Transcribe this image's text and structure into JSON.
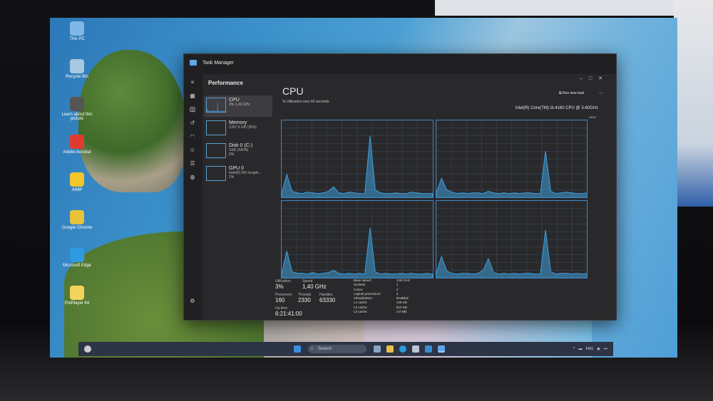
{
  "desktop": {
    "icons": [
      {
        "label": "This PC",
        "color": "#7fb7e6"
      },
      {
        "label": "Recycle Bin",
        "color": "#a8c8e0"
      },
      {
        "label": "Learn about this picture",
        "color": "#555"
      },
      {
        "label": "Adobe Acrobat",
        "color": "#e03a2f"
      },
      {
        "label": "AIMP",
        "color": "#f2c52a"
      },
      {
        "label": "Google Chrome",
        "color": "#e8c33a"
      },
      {
        "label": "Microsoft Edge",
        "color": "#2e9be0"
      },
      {
        "label": "PotPlayer 64",
        "color": "#f3d35b"
      }
    ]
  },
  "taskbar": {
    "search_placeholder": "Search",
    "tray_lang": "ENG"
  },
  "task_manager": {
    "title": "Task Manager",
    "section": "Performance",
    "accent": "#3f9fd9",
    "devices": [
      {
        "name": "CPU",
        "detail": "3% 1,40 GHz"
      },
      {
        "name": "Memory",
        "detail": "2,8/7,9 GB (35%)"
      },
      {
        "name": "Disk 0 (C:)",
        "detail": "SSD (SATA)",
        "detail2": "0%"
      },
      {
        "name": "GPU 0",
        "detail": "Intel(R) HD Graphi...",
        "detail2": "1%"
      }
    ],
    "header": "CPU",
    "run_new_task": "Run new task",
    "more": "...",
    "util_label": "% Utilization over 60 seconds",
    "cpu_name": "Intel(R) Core(TM) i3-4160 CPU @ 3.60GHz",
    "max_label": "100%",
    "stats": {
      "utilization_label": "Utilization",
      "utilization": "3%",
      "speed_label": "Speed",
      "speed": "1,40 GHz",
      "processes_label": "Processes",
      "processes": "160",
      "threads_label": "Threads",
      "threads": "2330",
      "handles_label": "Handles",
      "handles": "63330",
      "uptime_label": "Up time",
      "uptime": "6:21:41:00"
    },
    "specs": [
      [
        "Base speed:",
        "3,60 GHz"
      ],
      [
        "Sockets:",
        "1"
      ],
      [
        "Cores:",
        "2"
      ],
      [
        "Logical processors:",
        "4"
      ],
      [
        "Virtualization:",
        "Enabled"
      ],
      [
        "L1 cache:",
        "128 KB"
      ],
      [
        "L2 cache:",
        "512 KB"
      ],
      [
        "L3 cache:",
        "3,0 MB"
      ]
    ]
  },
  "chart_data": {
    "type": "area",
    "ylim": [
      0,
      100
    ],
    "xlabel": "",
    "ylabel": "% Utilization over 60 seconds",
    "series": [
      {
        "values": [
          5,
          30,
          8,
          6,
          5,
          7,
          6,
          5,
          6,
          8,
          14,
          6,
          5,
          7,
          6,
          5,
          5,
          80,
          10,
          6,
          5,
          5,
          6,
          5,
          5,
          7,
          6,
          5,
          5,
          5
        ]
      },
      {
        "values": [
          6,
          25,
          10,
          7,
          5,
          6,
          5,
          6,
          6,
          5,
          8,
          6,
          5,
          6,
          5,
          6,
          5,
          6,
          6,
          5,
          5,
          60,
          8,
          5,
          6,
          7,
          6,
          5,
          5,
          6
        ]
      },
      {
        "values": [
          5,
          35,
          8,
          6,
          6,
          5,
          7,
          5,
          6,
          7,
          10,
          6,
          5,
          6,
          5,
          6,
          5,
          65,
          8,
          5,
          6,
          5,
          5,
          6,
          5,
          6,
          5,
          5,
          6,
          5
        ]
      },
      {
        "values": [
          6,
          28,
          9,
          6,
          5,
          6,
          6,
          5,
          6,
          10,
          25,
          7,
          5,
          6,
          5,
          6,
          5,
          6,
          6,
          5,
          5,
          62,
          8,
          5,
          6,
          6,
          5,
          6,
          5,
          6
        ]
      }
    ]
  }
}
